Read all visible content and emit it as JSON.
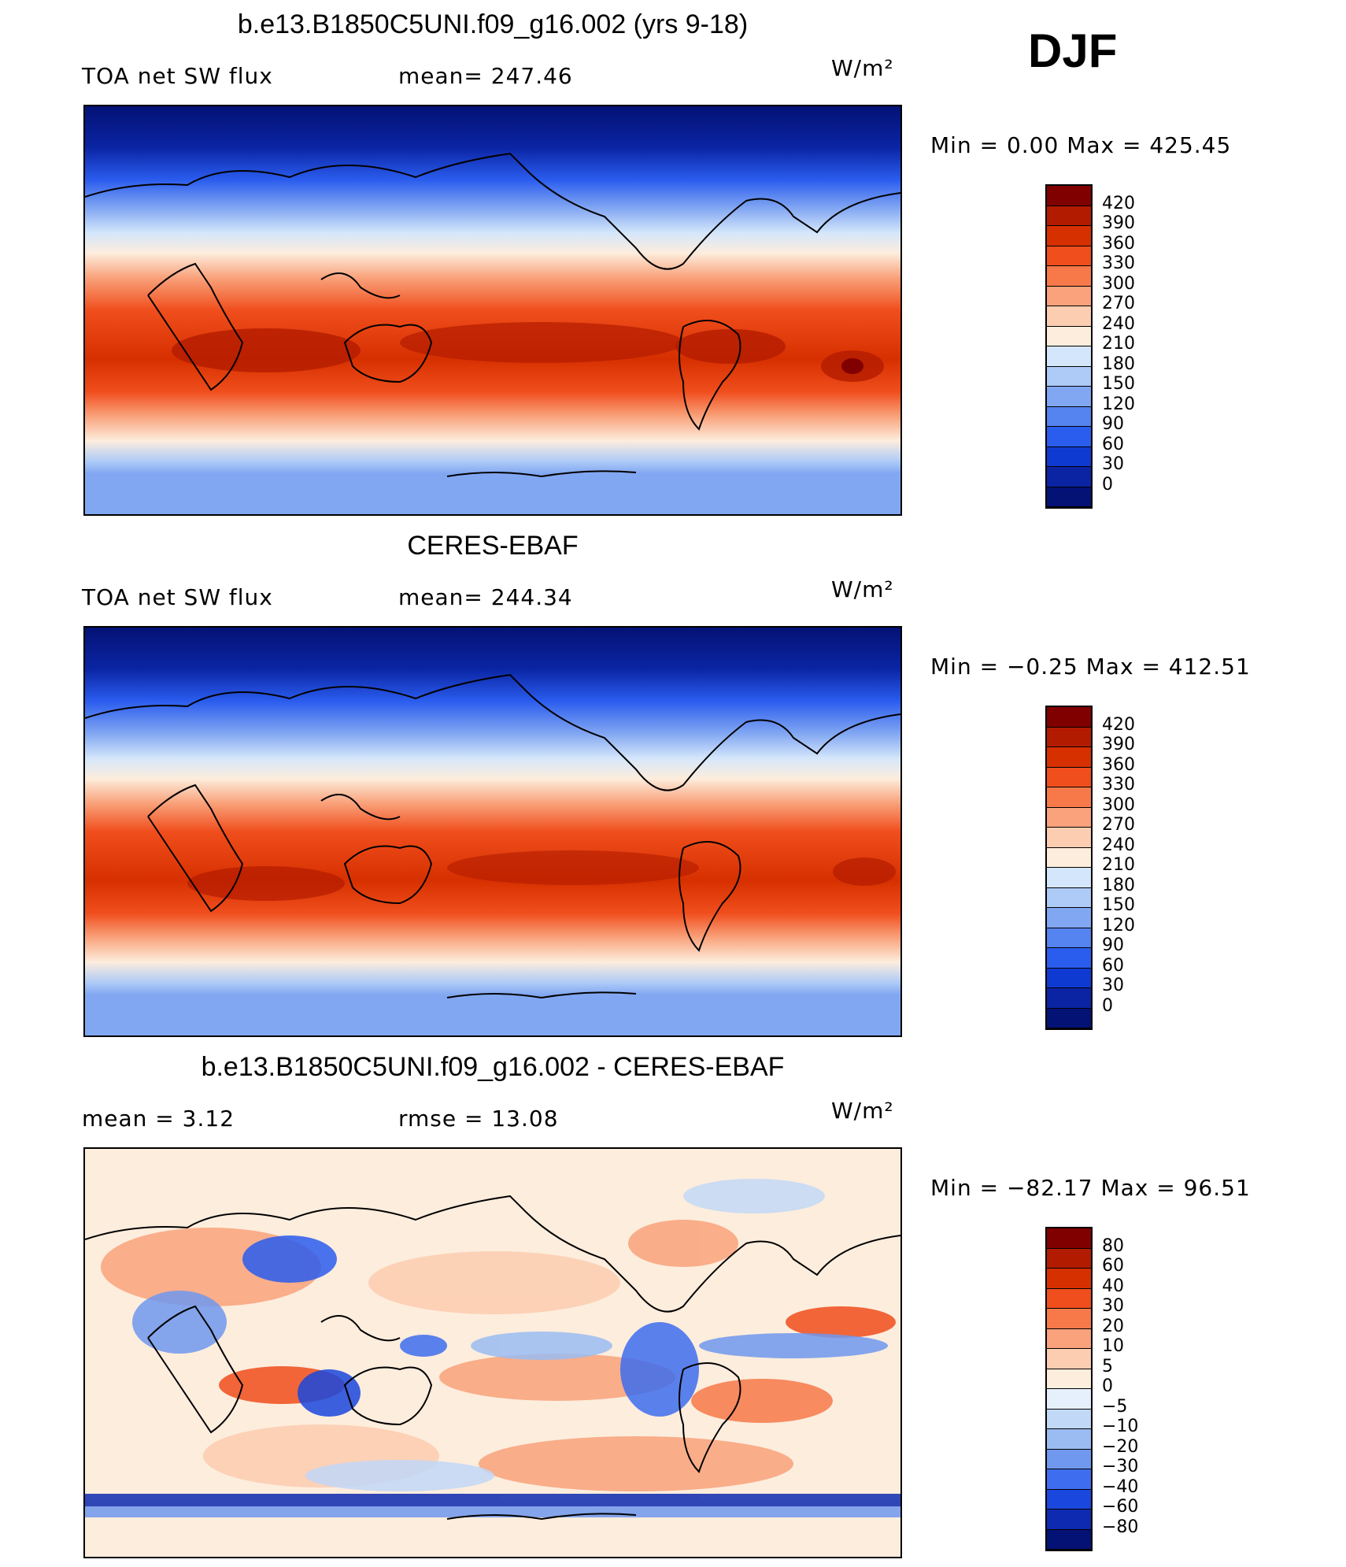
{
  "season": "DJF",
  "panels": [
    {
      "title": "b.e13.B1850C5UNI.f09_g16.002 (yrs 9-18)",
      "left_text": "TOA net SW flux",
      "mid_text": "mean= 247.46",
      "units": "W/m²",
      "minmax": "Min =    0.00 Max = 425.45",
      "colorbar_labels": [
        "420",
        "390",
        "360",
        "330",
        "300",
        "270",
        "240",
        "210",
        "180",
        "150",
        "120",
        "90",
        "60",
        "30",
        "0"
      ]
    },
    {
      "title": "CERES-EBAF",
      "left_text": "TOA net SW flux",
      "mid_text": "mean= 244.34",
      "units": "W/m²",
      "minmax": "Min =  −0.25 Max = 412.51",
      "colorbar_labels": [
        "420",
        "390",
        "360",
        "330",
        "300",
        "270",
        "240",
        "210",
        "180",
        "150",
        "120",
        "90",
        "60",
        "30",
        "0"
      ]
    },
    {
      "title": "b.e13.B1850C5UNI.f09_g16.002 - CERES-EBAF",
      "left_text": "mean =    3.12",
      "mid_text": "rmse =   13.08",
      "units": "W/m²",
      "minmax": "Min = −82.17 Max =   96.51",
      "colorbar_labels": [
        "80",
        "60",
        "40",
        "30",
        "20",
        "10",
        "5",
        "0",
        "−5",
        "−10",
        "−20",
        "−30",
        "−40",
        "−60",
        "−80"
      ]
    }
  ],
  "colors": {
    "abs_scale": [
      "#800000",
      "#b31b00",
      "#d73000",
      "#f04e1d",
      "#f7794a",
      "#f9a27b",
      "#fccdb0",
      "#fdeddd",
      "#d4e6fb",
      "#aecbf7",
      "#82a7f2",
      "#5583ef",
      "#2a5cee",
      "#0f3ad1",
      "#0a24a3",
      "#041275"
    ],
    "diff_scale": [
      "#800000",
      "#b31b00",
      "#d73000",
      "#f04e1d",
      "#f7794a",
      "#f9a27b",
      "#fccdb0",
      "#fdeddd",
      "#e6effc",
      "#c2d8f7",
      "#9abcf2",
      "#6f98ee",
      "#3e6def",
      "#1a47de",
      "#0d2ab0",
      "#041275"
    ]
  }
}
